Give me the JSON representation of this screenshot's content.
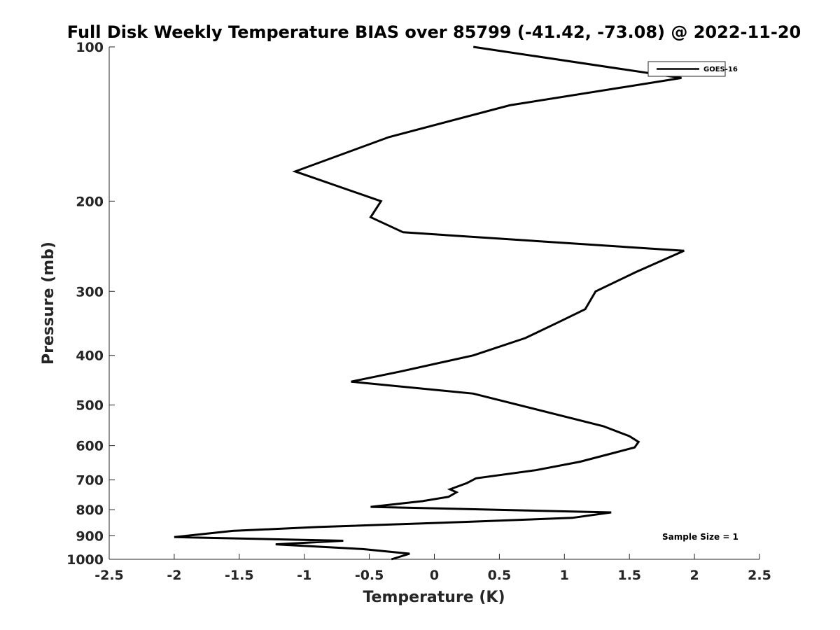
{
  "chart_data": {
    "type": "line",
    "title": "Full Disk Weekly Temperature BIAS over 85799 (-41.42, -73.08) @ 2022-11-20",
    "xlabel": "Temperature (K)",
    "ylabel": "Pressure (mb)",
    "xlim": [
      -2.5,
      2.5
    ],
    "ylim": [
      1000,
      100
    ],
    "y_scale": "log",
    "x_ticks": [
      -2.5,
      -2,
      -1.5,
      -1,
      -0.5,
      0,
      0.5,
      1,
      1.5,
      2,
      2.5
    ],
    "x_tick_labels": [
      "-2.5",
      "-2",
      "-1.5",
      "-1",
      "-0.5",
      "0",
      "0.5",
      "1",
      "1.5",
      "2",
      "2.5"
    ],
    "y_ticks": [
      100,
      200,
      300,
      400,
      500,
      600,
      700,
      800,
      900,
      1000
    ],
    "y_tick_labels": [
      "100",
      "200",
      "300",
      "400",
      "500",
      "600",
      "700",
      "800",
      "900",
      "1000"
    ],
    "legend_position": "top-right",
    "annotations": [
      {
        "text": "Sample Size = 1",
        "position": "bottom-right"
      }
    ],
    "series": [
      {
        "name": "GOES-16",
        "color": "#000000",
        "points": [
          {
            "t": 0.3,
            "p": 100
          },
          {
            "t": 1.9,
            "p": 115
          },
          {
            "t": 0.58,
            "p": 130
          },
          {
            "t": -0.35,
            "p": 150
          },
          {
            "t": -1.07,
            "p": 175
          },
          {
            "t": -0.41,
            "p": 200
          },
          {
            "t": -0.49,
            "p": 215
          },
          {
            "t": -0.24,
            "p": 230
          },
          {
            "t": 1.92,
            "p": 250
          },
          {
            "t": 1.55,
            "p": 275
          },
          {
            "t": 1.24,
            "p": 300
          },
          {
            "t": 1.16,
            "p": 325
          },
          {
            "t": 0.95,
            "p": 345
          },
          {
            "t": 0.7,
            "p": 370
          },
          {
            "t": 0.3,
            "p": 400
          },
          {
            "t": -0.26,
            "p": 430
          },
          {
            "t": -0.64,
            "p": 450
          },
          {
            "t": 0.3,
            "p": 475
          },
          {
            "t": 1.3,
            "p": 550
          },
          {
            "t": 1.5,
            "p": 575
          },
          {
            "t": 1.57,
            "p": 590
          },
          {
            "t": 1.54,
            "p": 605
          },
          {
            "t": 1.38,
            "p": 620
          },
          {
            "t": 1.12,
            "p": 645
          },
          {
            "t": 0.78,
            "p": 670
          },
          {
            "t": 0.32,
            "p": 695
          },
          {
            "t": 0.25,
            "p": 710
          },
          {
            "t": 0.12,
            "p": 730
          },
          {
            "t": 0.17,
            "p": 740
          },
          {
            "t": 0.11,
            "p": 755
          },
          {
            "t": -0.09,
            "p": 770
          },
          {
            "t": -0.49,
            "p": 790
          },
          {
            "t": 1.36,
            "p": 810
          },
          {
            "t": 1.06,
            "p": 830
          },
          {
            "t": 0.25,
            "p": 845
          },
          {
            "t": -0.9,
            "p": 865
          },
          {
            "t": -1.55,
            "p": 880
          },
          {
            "t": -2.0,
            "p": 905
          },
          {
            "t": -0.7,
            "p": 920
          },
          {
            "t": -1.22,
            "p": 935
          },
          {
            "t": -0.55,
            "p": 955
          },
          {
            "t": -0.19,
            "p": 975
          },
          {
            "t": -0.33,
            "p": 1000
          }
        ]
      }
    ]
  }
}
